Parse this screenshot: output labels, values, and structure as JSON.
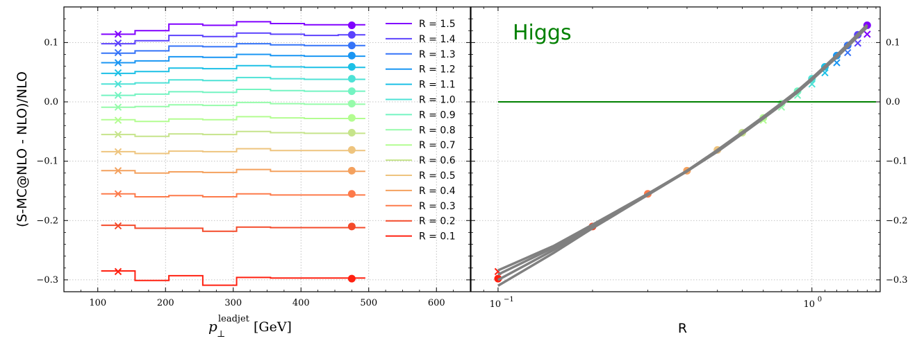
{
  "figure": {
    "ylabel": "(S-MC@NLO - NLO)/NLO",
    "right_xlabel": "R",
    "left_xlabel_main": "p",
    "left_xlabel_sub": "⊥",
    "left_xlabel_sup": "leadjet",
    "left_xlabel_unit": "[GeV]",
    "annotation": "Higgs",
    "colors": {
      "annotation": "#008000",
      "zero_line": "#008000",
      "fit_lines": "#808080",
      "grid": "#b0b0b0"
    }
  },
  "chart_data": [
    {
      "type": "line",
      "subtype": "step",
      "xlim": [
        50,
        650
      ],
      "ylim": [
        -0.32,
        0.16
      ],
      "xticks": [
        100,
        200,
        300,
        400,
        500,
        600
      ],
      "yticks": [
        -0.3,
        -0.2,
        -0.1,
        0.0,
        0.1
      ],
      "ytick_labels": [
        "−0.3",
        "−0.2",
        "−0.1",
        "0.0",
        "0.1"
      ],
      "grid": true,
      "legend_position": "right of plot area, top",
      "bin_edges": [
        105,
        155,
        205,
        255,
        305,
        355,
        405,
        455,
        495
      ],
      "cross_x": 130,
      "dot_x": 475,
      "series": [
        {
          "name": "R = 1.5",
          "color": "#8000ff",
          "values": [
            0.114,
            0.12,
            0.131,
            0.129,
            0.135,
            0.132,
            0.13,
            0.13
          ],
          "cross": 0.114,
          "dot": 0.129
        },
        {
          "name": "R = 1.4",
          "color": "#5b41fd",
          "values": [
            0.098,
            0.103,
            0.112,
            0.11,
            0.116,
            0.114,
            0.112,
            0.113
          ],
          "cross": 0.099,
          "dot": 0.113
        },
        {
          "name": "R = 1.3",
          "color": "#3473f8",
          "values": [
            0.082,
            0.086,
            0.094,
            0.093,
            0.098,
            0.096,
            0.095,
            0.095
          ],
          "cross": 0.083,
          "dot": 0.095
        },
        {
          "name": "R = 1.2",
          "color": "#1996f3",
          "values": [
            0.066,
            0.069,
            0.076,
            0.075,
            0.08,
            0.078,
            0.077,
            0.077
          ],
          "cross": 0.066,
          "dot": 0.078
        },
        {
          "name": "R = 1.1",
          "color": "#1cc0e6",
          "values": [
            0.048,
            0.051,
            0.057,
            0.056,
            0.061,
            0.059,
            0.058,
            0.058
          ],
          "cross": 0.049,
          "dot": 0.059
        },
        {
          "name": "R = 1.0",
          "color": "#4de2d6",
          "values": [
            0.03,
            0.032,
            0.037,
            0.036,
            0.041,
            0.039,
            0.038,
            0.038
          ],
          "cross": 0.03,
          "dot": 0.039
        },
        {
          "name": "R = 0.9",
          "color": "#74f4c2",
          "values": [
            0.011,
            0.013,
            0.017,
            0.016,
            0.021,
            0.019,
            0.018,
            0.018
          ],
          "cross": 0.011,
          "dot": 0.018
        },
        {
          "name": "R = 0.8",
          "color": "#96fbaa",
          "values": [
            -0.009,
            -0.008,
            -0.005,
            -0.006,
            -0.001,
            -0.003,
            -0.004,
            -0.004
          ],
          "cross": -0.009,
          "dot": -0.003
        },
        {
          "name": "R = 0.7",
          "color": "#b3fd91",
          "values": [
            -0.03,
            -0.033,
            -0.029,
            -0.03,
            -0.025,
            -0.027,
            -0.028,
            -0.028
          ],
          "cross": -0.031,
          "dot": -0.027
        },
        {
          "name": "R = 0.6",
          "color": "#c6e48b",
          "values": [
            -0.055,
            -0.058,
            -0.054,
            -0.055,
            -0.05,
            -0.052,
            -0.053,
            -0.053
          ],
          "cross": -0.055,
          "dot": -0.052
        },
        {
          "name": "R = 0.5",
          "color": "#eec47e",
          "values": [
            -0.084,
            -0.087,
            -0.083,
            -0.084,
            -0.079,
            -0.082,
            -0.082,
            -0.082
          ],
          "cross": -0.084,
          "dot": -0.081
        },
        {
          "name": "R = 0.4",
          "color": "#f4a15e",
          "values": [
            -0.116,
            -0.12,
            -0.118,
            -0.119,
            -0.114,
            -0.117,
            -0.117,
            -0.117
          ],
          "cross": -0.116,
          "dot": -0.116
        },
        {
          "name": "R = 0.3",
          "color": "#fd7a4a",
          "values": [
            -0.155,
            -0.16,
            -0.158,
            -0.16,
            -0.155,
            -0.157,
            -0.157,
            -0.157
          ],
          "cross": -0.155,
          "dot": -0.155
        },
        {
          "name": "R = 0.2",
          "color": "#f44a2a",
          "values": [
            -0.208,
            -0.213,
            -0.213,
            -0.218,
            -0.211,
            -0.212,
            -0.212,
            -0.212
          ],
          "cross": -0.209,
          "dot": -0.21
        },
        {
          "name": "R = 0.1",
          "color": "#ff2010",
          "values": [
            -0.285,
            -0.301,
            -0.293,
            -0.309,
            -0.296,
            -0.297,
            -0.297,
            -0.297
          ],
          "cross": -0.286,
          "dot": -0.298
        }
      ]
    },
    {
      "type": "scatter",
      "xscale": "log",
      "xlim": [
        0.082,
        1.65
      ],
      "ylim": [
        -0.32,
        0.16
      ],
      "xticks": [
        0.1,
        1.0
      ],
      "xtick_labels": [
        "10",
        "10"
      ],
      "xtick_exponents": [
        "−1",
        "0"
      ],
      "yticks": [
        -0.3,
        -0.2,
        -0.1,
        0.0,
        0.1
      ],
      "ytick_labels": [
        "−0.3",
        "−0.2",
        "−0.1",
        "0.0",
        "0.1"
      ],
      "yaxis_side": "right",
      "grid": true,
      "hline_y": 0.0,
      "hline_x_range": [
        0.1,
        1.6
      ],
      "fit_x": [
        0.1,
        0.15,
        0.2,
        0.3,
        0.4,
        0.5,
        0.6,
        0.7,
        0.8,
        0.9,
        1.0,
        1.1,
        1.2,
        1.3,
        1.4,
        1.5
      ],
      "fit_curves": [
        {
          "y": [
            -0.284,
            -0.243,
            -0.207,
            -0.155,
            -0.117,
            -0.084,
            -0.054,
            -0.028,
            -0.005,
            0.016,
            0.037,
            0.057,
            0.075,
            0.093,
            0.11,
            0.126
          ]
        },
        {
          "y": [
            -0.291,
            -0.246,
            -0.209,
            -0.155,
            -0.116,
            -0.082,
            -0.052,
            -0.026,
            -0.003,
            0.018,
            0.039,
            0.059,
            0.078,
            0.096,
            0.113,
            0.129
          ]
        },
        {
          "y": [
            -0.3,
            -0.25,
            -0.211,
            -0.156,
            -0.116,
            -0.081,
            -0.051,
            -0.025,
            -0.002,
            0.019,
            0.04,
            0.06,
            0.079,
            0.097,
            0.114,
            0.13
          ]
        },
        {
          "y": [
            -0.31,
            -0.255,
            -0.213,
            -0.157,
            -0.117,
            -0.082,
            -0.052,
            -0.026,
            -0.003,
            0.018,
            0.039,
            0.059,
            0.078,
            0.096,
            0.113,
            0.129
          ]
        }
      ],
      "points": [
        {
          "x": 0.1,
          "y": -0.298,
          "color": "#ff2010"
        },
        {
          "x": 0.2,
          "y": -0.21,
          "color": "#f44a2a"
        },
        {
          "x": 0.3,
          "y": -0.155,
          "color": "#fd7a4a"
        },
        {
          "x": 0.4,
          "y": -0.116,
          "color": "#f4a15e"
        },
        {
          "x": 0.5,
          "y": -0.081,
          "color": "#eec47e"
        },
        {
          "x": 0.6,
          "y": -0.052,
          "color": "#c6e48b"
        },
        {
          "x": 0.7,
          "y": -0.027,
          "color": "#b3fd91"
        },
        {
          "x": 0.8,
          "y": -0.003,
          "color": "#96fbaa"
        },
        {
          "x": 0.9,
          "y": 0.018,
          "color": "#74f4c2"
        },
        {
          "x": 1.0,
          "y": 0.039,
          "color": "#4de2d6"
        },
        {
          "x": 1.1,
          "y": 0.059,
          "color": "#1cc0e6"
        },
        {
          "x": 1.2,
          "y": 0.078,
          "color": "#1996f3"
        },
        {
          "x": 1.3,
          "y": 0.095,
          "color": "#3473f8"
        },
        {
          "x": 1.4,
          "y": 0.113,
          "color": "#5b41fd"
        },
        {
          "x": 1.5,
          "y": 0.129,
          "color": "#8000ff"
        }
      ],
      "crosses": [
        {
          "x": 0.1,
          "y": -0.286,
          "color": "#ff2010"
        },
        {
          "x": 0.7,
          "y": -0.031,
          "color": "#b3fd91"
        },
        {
          "x": 0.8,
          "y": -0.009,
          "color": "#96fbaa"
        },
        {
          "x": 0.9,
          "y": 0.011,
          "color": "#74f4c2"
        },
        {
          "x": 1.0,
          "y": 0.03,
          "color": "#4de2d6"
        },
        {
          "x": 1.1,
          "y": 0.049,
          "color": "#1cc0e6"
        },
        {
          "x": 1.2,
          "y": 0.066,
          "color": "#1996f3"
        },
        {
          "x": 1.3,
          "y": 0.083,
          "color": "#3473f8"
        },
        {
          "x": 1.4,
          "y": 0.099,
          "color": "#5b41fd"
        },
        {
          "x": 1.5,
          "y": 0.114,
          "color": "#8000ff"
        }
      ]
    }
  ]
}
